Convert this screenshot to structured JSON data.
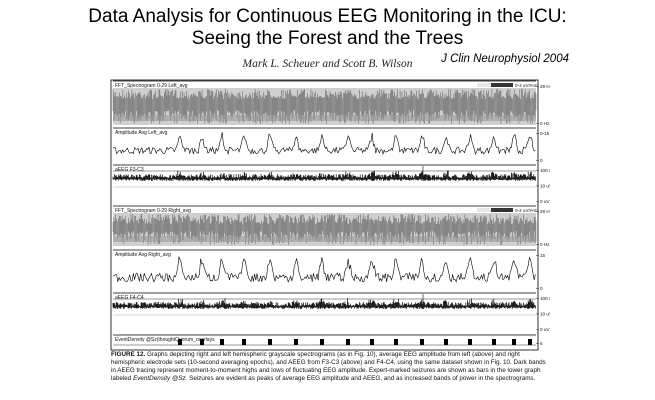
{
  "slide": {
    "title_line1": "Data Analysis for Continuous EEG Monitoring in the ICU:",
    "title_line2": "Seeing the Forest and the Trees",
    "journal": "J Clin Neurophysiol 2004",
    "authors": "Mark L. Scheuer and Scott B. Wilson"
  },
  "figure": {
    "panels": [
      {
        "label": "FFT_Spectrogram 0-29 Left_avg",
        "kind": "spectrogram",
        "scale_label": "0-4 uV/rHz",
        "ticks": [
          "29 Hz",
          "0 Hz"
        ]
      },
      {
        "label": "Amplitude Avg Left_avg",
        "kind": "amplitude",
        "ticks": [
          "0-15",
          "0"
        ]
      },
      {
        "label": "aEEG F3-C3",
        "kind": "aeeg",
        "ticks": [
          "100 uV",
          "10 uV",
          "0 uV"
        ]
      },
      {
        "label": "FFT_Spectrogram 0-29 Right_avg",
        "kind": "spectrogram",
        "scale_label": "0-4 uV/rHz",
        "ticks": [
          "29 Hz",
          "0 Hz"
        ]
      },
      {
        "label": "Amplitude Avg Right_avg",
        "kind": "amplitude",
        "ticks": [
          "15",
          "0"
        ]
      },
      {
        "label": "aEEG F4-C4",
        "kind": "aeeg",
        "ticks": [
          "100 uV",
          "10 uV",
          "0 uV"
        ]
      },
      {
        "label": "EventDensity @Sz(thoughtQuorum_overlays",
        "kind": "events",
        "ticks": [
          "6"
        ]
      }
    ],
    "seizure_count": 16
  },
  "caption": {
    "label": "FIGURE 12.",
    "segments": [
      {
        "t": "Graphs depicting right and left hemispheric grayscale spectrograms (as in Fig. 10), average EEG amplitude from left (",
        "i": false
      },
      {
        "t": "above",
        "i": true
      },
      {
        "t": ") and right hemispheric electrode sets (10-second averaging epochs), and AEEG from F3-C3 (",
        "i": false
      },
      {
        "t": "above",
        "i": true
      },
      {
        "t": ") and F4-C4, using the same dataset shown in Fig. 10. Dark bands in AEEG tracing represent moment-to-moment highs and lows of fluctuating EEG amplitude. Expert-marked seizures are shown as bars in the lower graph labeled ",
        "i": false
      },
      {
        "t": "EventDensity @Sz.",
        "i": true
      },
      {
        "t": " Seizures are evident as peaks of average EEG amplitude and AEEG, and as increased bands of power in the spectrograms.",
        "i": false
      }
    ]
  }
}
